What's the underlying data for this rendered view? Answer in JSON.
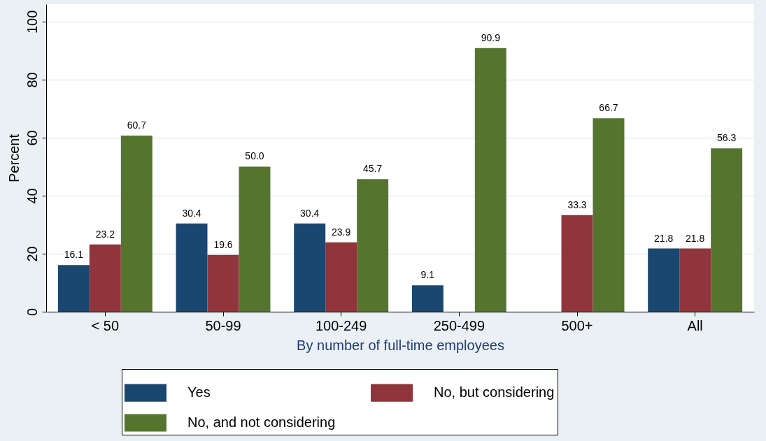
{
  "chart_data": {
    "type": "bar",
    "xlabel": "By number of full-time employees",
    "ylabel": "Percent",
    "categories": [
      "< 50",
      "50-99",
      "100-249",
      "250-499",
      "500+",
      "All"
    ],
    "series": [
      {
        "name": "Yes",
        "color": "#1a476f",
        "values": [
          16.1,
          30.4,
          30.4,
          9.1,
          null,
          21.8
        ],
        "value_labels": [
          "16.1",
          "30.4",
          "30.4",
          "9.1",
          null,
          "21.8"
        ]
      },
      {
        "name": "No, but considering",
        "color": "#90353b",
        "values": [
          23.2,
          19.6,
          23.9,
          null,
          33.3,
          21.8
        ],
        "value_labels": [
          "23.2",
          "19.6",
          "23.9",
          null,
          "33.3",
          "21.8"
        ]
      },
      {
        "name": "No, and not considering",
        "color": "#55752f",
        "values": [
          60.7,
          50.0,
          45.7,
          90.9,
          66.7,
          56.3
        ],
        "value_labels": [
          "60.7",
          "50.0",
          "45.7",
          "90.9",
          "66.7",
          "56.3"
        ]
      }
    ],
    "ylim": [
      0,
      106
    ],
    "yticks": [
      0,
      20,
      40,
      60,
      80,
      100
    ],
    "grid": "y",
    "legend": "bottom"
  }
}
